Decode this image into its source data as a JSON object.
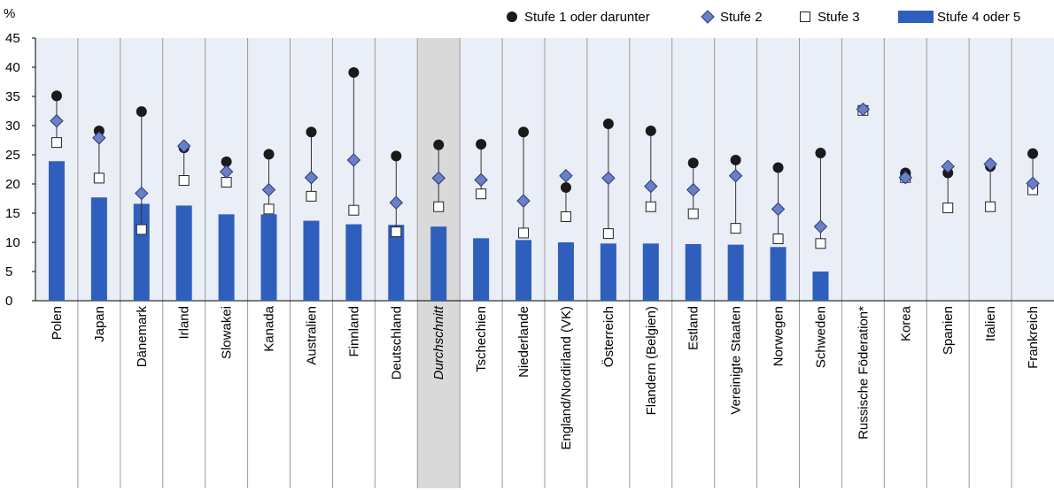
{
  "chart_data": {
    "type": "scatter",
    "y_unit_label": "%",
    "ylim": [
      0,
      45
    ],
    "y_ticks": [
      0,
      5,
      10,
      15,
      20,
      25,
      30,
      35,
      40,
      45
    ],
    "categories": [
      "Polen",
      "Japan",
      "Dänemark",
      "Irland",
      "Slowakei",
      "Kanada",
      "Australien",
      "Finnland",
      "Deutschland",
      "Durchschnitt",
      "Tschechien",
      "Niederlande",
      "England/Nordirland (VK)",
      "Österreich",
      "Flandern (Belgien)",
      "Estland",
      "Vereinigte Staaten",
      "Norwegen",
      "Schweden",
      "Russische Föderation*",
      "Korea",
      "Spanien",
      "Italien",
      "Frankreich"
    ],
    "highlight_category": "Durchschnitt",
    "series": [
      {
        "name": "Stufe 1 oder darunter",
        "marker": "circle",
        "color": "#1a1a1a",
        "values": [
          35.1,
          29.1,
          32.4,
          26.2,
          23.8,
          25.1,
          28.9,
          39.1,
          24.8,
          26.7,
          26.8,
          28.9,
          19.4,
          30.3,
          29.1,
          23.6,
          24.1,
          22.8,
          25.3,
          null,
          21.9,
          21.9,
          23.0,
          25.2
        ]
      },
      {
        "name": "Stufe 2",
        "marker": "diamond",
        "color": "#6b7fc7",
        "values": [
          30.8,
          27.9,
          18.4,
          26.5,
          22.1,
          19.0,
          21.1,
          24.1,
          16.8,
          21.0,
          20.7,
          17.1,
          21.4,
          21.0,
          19.6,
          19.0,
          21.4,
          15.7,
          12.7,
          32.8,
          21.1,
          23.0,
          23.4,
          20.1
        ]
      },
      {
        "name": "Stufe 3",
        "marker": "square",
        "color": "#ffffff",
        "values": [
          27.1,
          21.0,
          12.2,
          20.6,
          20.3,
          15.7,
          17.9,
          15.5,
          11.8,
          16.1,
          18.3,
          11.6,
          14.4,
          11.5,
          16.1,
          14.9,
          12.4,
          10.6,
          9.8,
          32.6,
          21.1,
          15.9,
          16.1,
          19.0
        ]
      },
      {
        "name": "Stufe 4 oder 5",
        "marker": "bar",
        "color": "#2e5fbd",
        "values": [
          23.9,
          17.7,
          16.6,
          16.3,
          14.8,
          14.8,
          13.7,
          13.1,
          13.0,
          12.7,
          10.7,
          10.4,
          10.0,
          9.8,
          9.8,
          9.7,
          9.6,
          9.2,
          5.0,
          null,
          null,
          null,
          null,
          null
        ]
      }
    ],
    "legend_position": "top-right",
    "grid": "vertical-separators"
  }
}
